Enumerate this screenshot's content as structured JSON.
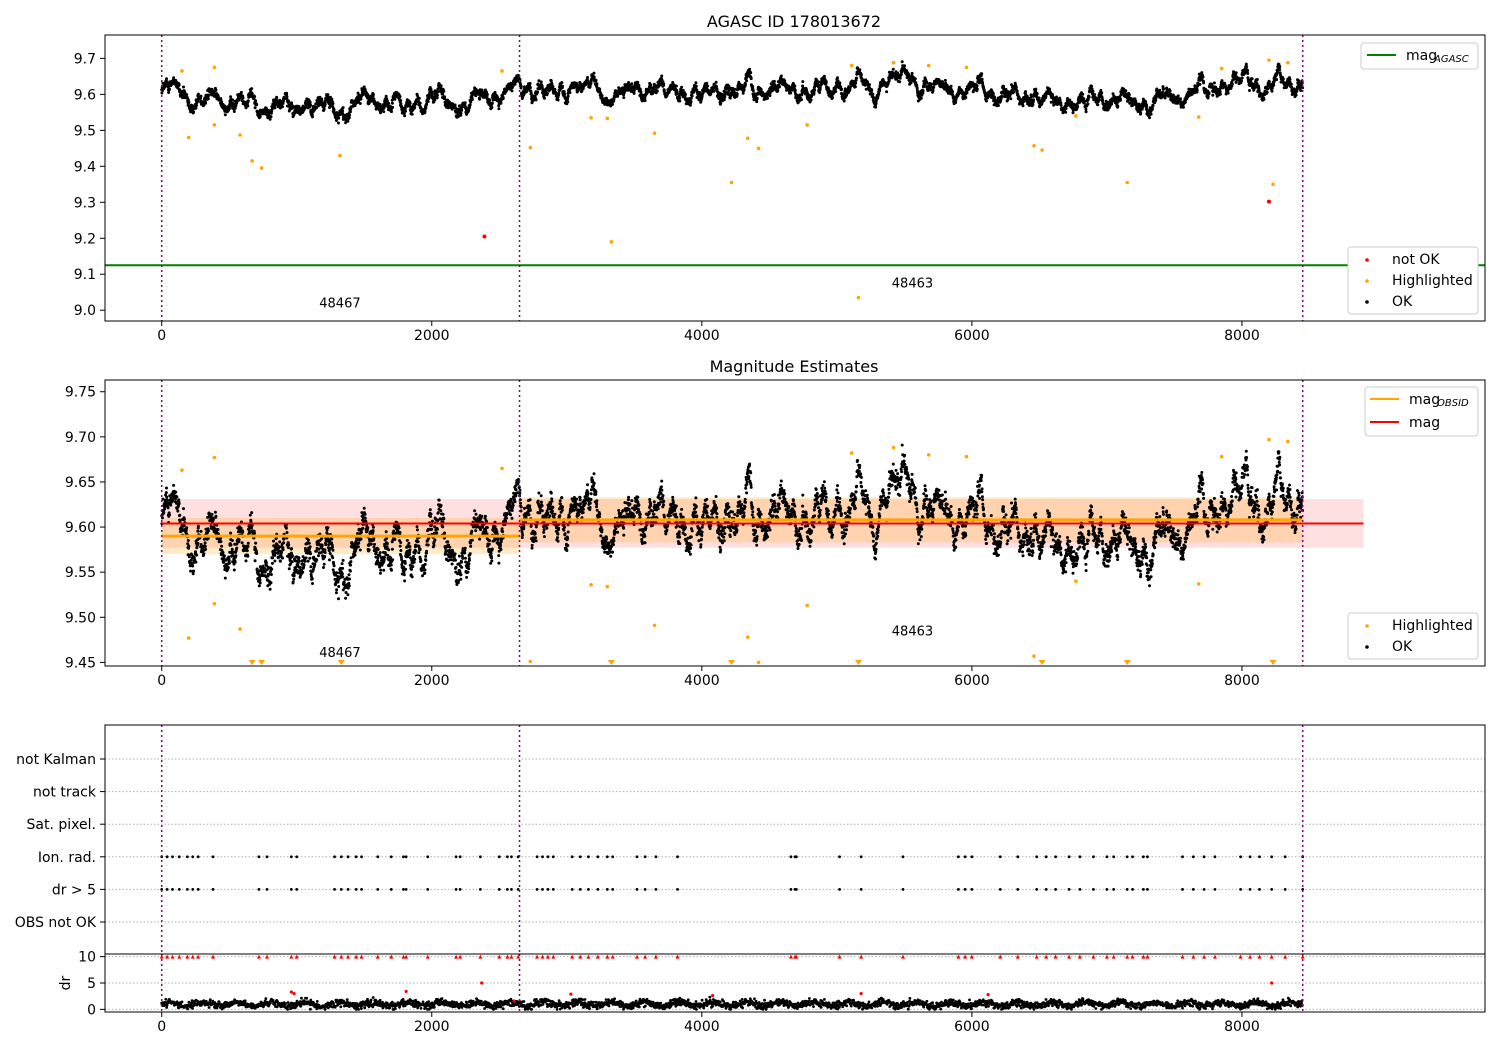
{
  "chart_data": [
    {
      "type": "scatter",
      "title": "AGASC ID 178013672",
      "xlabel": "",
      "ylabel": "",
      "xlim": [
        -420,
        9800
      ],
      "ylim": [
        8.97,
        9.765
      ],
      "xticks": [
        0,
        2000,
        4000,
        6000,
        8000
      ],
      "yticks": [
        9.0,
        9.1,
        9.2,
        9.3,
        9.4,
        9.5,
        9.6,
        9.7
      ],
      "obsid_boundaries": [
        0,
        2650,
        8450
      ],
      "obsid_labels": [
        {
          "text": "48467",
          "x": 1320,
          "y": 9.008
        },
        {
          "text": "48463",
          "x": 5560,
          "y": 9.063
        }
      ],
      "legend_upper": {
        "position": "top-right",
        "entries": [
          {
            "label": "mag",
            "sub": "AGASC",
            "color": "#008000"
          }
        ]
      },
      "legend_lower": {
        "position": "bottom-right",
        "entries": [
          {
            "label": "not OK",
            "color": "#ff0000"
          },
          {
            "label": "Highlighted",
            "color": "#ffa500"
          },
          {
            "label": "OK",
            "color": "#000000"
          }
        ]
      },
      "mag_agasc": 9.125,
      "ok_trend": {
        "mean": 9.595,
        "segments": [
          [
            0,
            9.615
          ],
          [
            400,
            9.585
          ],
          [
            1000,
            9.565
          ],
          [
            1800,
            9.575
          ],
          [
            2400,
            9.58
          ],
          [
            2650,
            9.625
          ],
          [
            3500,
            9.61
          ],
          [
            5000,
            9.61
          ],
          [
            5500,
            9.635
          ],
          [
            6500,
            9.595
          ],
          [
            7400,
            9.585
          ],
          [
            7800,
            9.62
          ],
          [
            8450,
            9.635
          ]
        ]
      },
      "highlighted_points": [
        [
          200,
          9.48
        ],
        [
          390,
          9.515
        ],
        [
          580,
          9.487
        ],
        [
          670,
          9.415
        ],
        [
          740,
          9.395
        ],
        [
          1320,
          9.43
        ],
        [
          2730,
          9.452
        ],
        [
          3180,
          9.535
        ],
        [
          3300,
          9.533
        ],
        [
          3330,
          9.19
        ],
        [
          3650,
          9.492
        ],
        [
          4220,
          9.355
        ],
        [
          4340,
          9.478
        ],
        [
          4420,
          9.45
        ],
        [
          4780,
          9.515
        ],
        [
          5160,
          9.035
        ],
        [
          6460,
          9.457
        ],
        [
          6520,
          9.445
        ],
        [
          6770,
          9.54
        ],
        [
          7150,
          9.355
        ],
        [
          7680,
          9.537
        ],
        [
          8230,
          9.35
        ],
        [
          150,
          9.665
        ],
        [
          390,
          9.675
        ],
        [
          2520,
          9.665
        ],
        [
          5110,
          9.68
        ],
        [
          5420,
          9.688
        ],
        [
          5680,
          9.68
        ],
        [
          5960,
          9.675
        ],
        [
          7850,
          9.672
        ],
        [
          8200,
          9.695
        ],
        [
          8340,
          9.688
        ]
      ],
      "not_ok_points": [
        [
          2390,
          9.205
        ],
        [
          8200,
          9.302
        ]
      ]
    },
    {
      "type": "scatter",
      "title": "Magnitude Estimates",
      "xlabel": "",
      "ylabel": "",
      "xlim": [
        -420,
        9800
      ],
      "ylim": [
        9.446,
        9.763
      ],
      "xticks": [
        0,
        2000,
        4000,
        6000,
        8000
      ],
      "yticks": [
        9.45,
        9.5,
        9.55,
        9.6,
        9.65,
        9.7,
        9.75
      ],
      "obsid_boundaries": [
        0,
        2650,
        8450
      ],
      "obsid_labels": [
        {
          "text": "48467",
          "x": 1320,
          "y": 9.456
        },
        {
          "text": "48463",
          "x": 5560,
          "y": 9.48
        }
      ],
      "legend_upper": {
        "position": "top-right",
        "entries": [
          {
            "label": "mag",
            "sub": "OBSID",
            "color": "#ffa500"
          },
          {
            "label": "mag",
            "sub": "",
            "color": "#ff0000"
          }
        ]
      },
      "legend_lower": {
        "position": "bottom-right",
        "entries": [
          {
            "label": "Highlighted",
            "color": "#ffa500"
          },
          {
            "label": "OK",
            "color": "#000000"
          }
        ]
      },
      "mag_overall": {
        "value": 9.604,
        "band": [
          9.577,
          9.631
        ],
        "x_range": [
          0,
          8900
        ]
      },
      "mag_obsid": [
        {
          "x_range": [
            0,
            2650
          ],
          "value": 9.59,
          "band": [
            9.57,
            9.61
          ]
        },
        {
          "x_range": [
            2650,
            8450
          ],
          "value": 9.608,
          "band": [
            9.583,
            9.633
          ]
        }
      ],
      "highlighted_points": [
        [
          200,
          9.477
        ],
        [
          390,
          9.515
        ],
        [
          580,
          9.487
        ],
        [
          3180,
          9.536
        ],
        [
          3300,
          9.534
        ],
        [
          3650,
          9.491
        ],
        [
          4340,
          9.478
        ],
        [
          4780,
          9.513
        ],
        [
          6460,
          9.457
        ],
        [
          6770,
          9.54
        ],
        [
          7680,
          9.537
        ],
        [
          150,
          9.663
        ],
        [
          390,
          9.677
        ],
        [
          2520,
          9.665
        ],
        [
          5110,
          9.682
        ],
        [
          5420,
          9.688
        ],
        [
          5680,
          9.68
        ],
        [
          5960,
          9.678
        ],
        [
          7850,
          9.678
        ],
        [
          8200,
          9.697
        ],
        [
          8340,
          9.695
        ],
        [
          2730,
          9.451
        ],
        [
          4420,
          9.45
        ]
      ],
      "below_range_markers": [
        670,
        740,
        1330,
        3330,
        4220,
        5160,
        6520,
        7150,
        8230
      ]
    },
    {
      "type": "scatter",
      "title": "",
      "xlabel": "",
      "ylabel": "",
      "xlim": [
        -420,
        9800
      ],
      "categories": [
        "not Kalman",
        "not track",
        "Sat. pixel.",
        "Ion. rad.",
        "dr > 5",
        "OBS not OK"
      ],
      "flag_times": [
        0,
        40,
        80,
        130,
        190,
        230,
        270,
        380,
        720,
        780,
        960,
        1000,
        1280,
        1330,
        1380,
        1440,
        1480,
        1600,
        1700,
        1790,
        1810,
        1970,
        2180,
        2210,
        2360,
        2500,
        2560,
        2590,
        2640,
        2780,
        2820,
        2860,
        2900,
        3040,
        3100,
        3160,
        3230,
        3300,
        3340,
        3520,
        3580,
        3660,
        3820,
        4660,
        4690,
        4700,
        5020,
        5180,
        5490,
        5900,
        5950,
        6000,
        6210,
        6340,
        6480,
        6550,
        6620,
        6720,
        6800,
        6900,
        7000,
        7050,
        7150,
        7190,
        7270,
        7300,
        7560,
        7640,
        7720,
        7800,
        7990,
        8060,
        8130,
        8220,
        8320,
        8450
      ],
      "obsid_boundaries": [
        0,
        2650,
        8450
      ]
    },
    {
      "type": "scatter",
      "title": "",
      "xlabel": "",
      "ylabel": "dr",
      "xlim": [
        -420,
        9800
      ],
      "ylim": [
        -0.5,
        10.5
      ],
      "yticks": [
        0,
        5,
        10
      ],
      "typical_dr": 1.0,
      "capped_value": 10,
      "red_points": [
        [
          960,
          3.3
        ],
        [
          980,
          3.0
        ],
        [
          1810,
          3.4
        ],
        [
          2370,
          5.0
        ],
        [
          3030,
          2.9
        ],
        [
          5180,
          3.0
        ],
        [
          8220,
          5.0
        ],
        [
          2610,
          1.6
        ],
        [
          4080,
          2.6
        ],
        [
          6120,
          2.8
        ]
      ],
      "obsid_boundaries": [
        0,
        2650,
        8450
      ]
    }
  ]
}
